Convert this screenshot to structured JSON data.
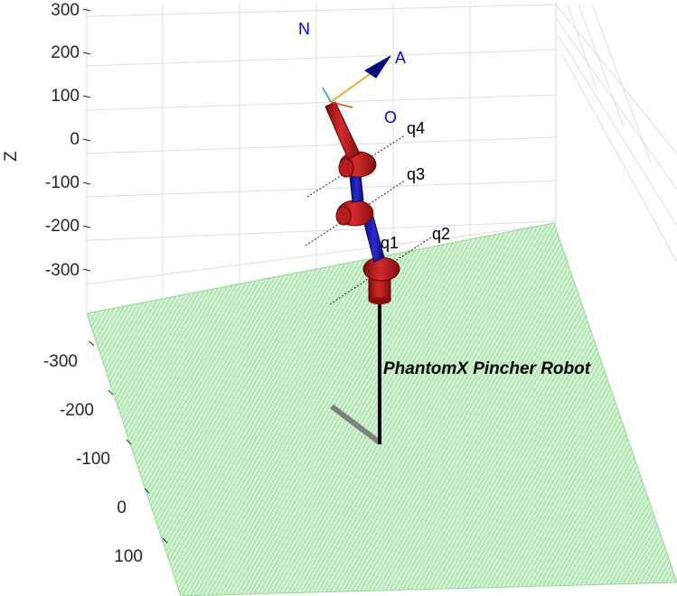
{
  "z_axis": {
    "label": "Z",
    "ticks": [
      "300",
      "200",
      "100",
      "0",
      "-100",
      "-200",
      "-300"
    ]
  },
  "y_axis": {
    "ticks": [
      "-300",
      "-200",
      "-100",
      "0",
      "100"
    ]
  },
  "robot": {
    "name": "PhantomX Pincher Robot",
    "joints": [
      "q1",
      "q2",
      "q3",
      "q4"
    ],
    "frame_labels": {
      "normal": "N",
      "approach": "A",
      "orientation": "O"
    }
  },
  "colors": {
    "floor": "#c6efc6",
    "floor_hatch": "#7fd37f",
    "link_red": "#cc1f1f",
    "link_blue": "#1c1cb0",
    "grid": "#d9d9d9",
    "frame_blue": "#0000ff",
    "approach_orange": "#f0a020",
    "o_axis_red": "#e04010"
  }
}
